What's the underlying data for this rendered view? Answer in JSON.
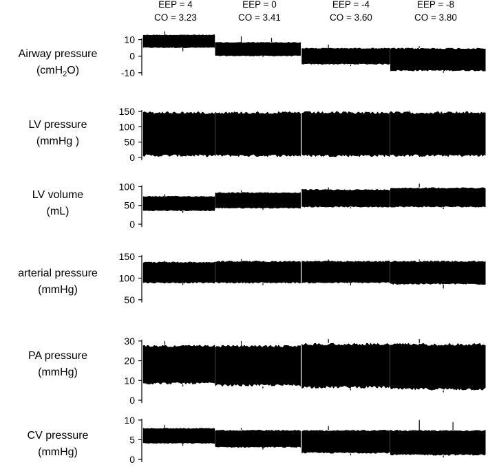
{
  "conditions": [
    {
      "eep": "EEP = 4",
      "co": "CO = 3.23"
    },
    {
      "eep": "EEP = 0",
      "co": "CO = 3.41"
    },
    {
      "eep": "EEP = -4",
      "co": "CO = 3.60"
    },
    {
      "eep": "EEP = -8",
      "co": "CO = 3.80"
    }
  ],
  "chart_data": [
    {
      "type": "area",
      "label_line1": "Airway pressure",
      "label_line2": "(cmH2O)",
      "yticks": [
        10,
        0,
        -10
      ],
      "ylim": [
        -13,
        14
      ],
      "segments": [
        {
          "condition": "EEP = 4",
          "min": 5,
          "max": 13,
          "x_range": [
            0,
            0.21
          ],
          "spikes_max": [
            15
          ],
          "spikes_min": [
            3
          ]
        },
        {
          "condition": "EEP = 0",
          "min": 0,
          "max": 8.5,
          "x_range": [
            0.21,
            0.462
          ],
          "spikes_max": [
            12,
            11
          ],
          "spikes_min": [
            -0.5
          ]
        },
        {
          "condition": "EEP = -4",
          "min": -5,
          "max": 5,
          "x_range": [
            0.462,
            0.72
          ],
          "spikes_max": [
            7
          ],
          "spikes_min": [
            -6
          ]
        },
        {
          "condition": "EEP = -8",
          "min": -9,
          "max": 5,
          "x_range": [
            0.72,
            1
          ],
          "spikes_max": [
            6
          ],
          "spikes_min": [
            -10
          ]
        }
      ]
    },
    {
      "type": "area",
      "label_line1": "LV pressure",
      "label_line2": "(mmHg )",
      "yticks": [
        150,
        100,
        50,
        0
      ],
      "ylim": [
        0,
        150
      ],
      "segments": [
        {
          "condition": "EEP = 4",
          "min": 2,
          "max": 150,
          "x_range": [
            0,
            0.21
          ]
        },
        {
          "condition": "EEP = 0",
          "min": 2,
          "max": 150,
          "x_range": [
            0.21,
            0.462
          ]
        },
        {
          "condition": "EEP = -4",
          "min": 2,
          "max": 150,
          "x_range": [
            0.462,
            0.72
          ]
        },
        {
          "condition": "EEP = -8",
          "min": 2,
          "max": 150,
          "x_range": [
            0.72,
            1
          ]
        }
      ]
    },
    {
      "type": "area",
      "label_line1": "LV volume",
      "label_line2": "(mL)",
      "yticks": [
        100,
        50,
        0
      ],
      "ylim": [
        0,
        110
      ],
      "segments": [
        {
          "condition": "EEP = 4",
          "min": 35,
          "max": 75,
          "x_range": [
            0,
            0.21
          ],
          "spikes_max": [
            80
          ],
          "spikes_min": [
            30
          ]
        },
        {
          "condition": "EEP = 0",
          "min": 42,
          "max": 85,
          "x_range": [
            0.21,
            0.462
          ],
          "spikes_max": [
            90
          ],
          "spikes_min": [
            38
          ]
        },
        {
          "condition": "EEP = -4",
          "min": 45,
          "max": 93,
          "x_range": [
            0.462,
            0.72
          ],
          "spikes_max": [
            98
          ],
          "spikes_min": [
            42
          ]
        },
        {
          "condition": "EEP = -8",
          "min": 45,
          "max": 98,
          "x_range": [
            0.72,
            1
          ],
          "spikes_max": [
            108
          ],
          "spikes_min": [
            40
          ]
        }
      ]
    },
    {
      "type": "area",
      "label_line1": "arterial pressure",
      "label_line2": "(mmHg)",
      "yticks": [
        150,
        100,
        50
      ],
      "ylim": [
        45,
        150
      ],
      "segments": [
        {
          "condition": "EEP = 4",
          "min": 88,
          "max": 138,
          "x_range": [
            0,
            0.21
          ],
          "spikes_max": [
            140
          ],
          "spikes_min": [
            84
          ]
        },
        {
          "condition": "EEP = 0",
          "min": 88,
          "max": 140,
          "x_range": [
            0.21,
            0.462
          ],
          "spikes_max": [
            144
          ],
          "spikes_min": [
            84
          ]
        },
        {
          "condition": "EEP = -4",
          "min": 88,
          "max": 140,
          "x_range": [
            0.462,
            0.72
          ],
          "spikes_max": [
            143
          ],
          "spikes_min": [
            83
          ]
        },
        {
          "condition": "EEP = -8",
          "min": 85,
          "max": 140,
          "x_range": [
            0.72,
            1
          ],
          "spikes_max": [
            143
          ],
          "spikes_min": [
            76
          ]
        }
      ]
    },
    {
      "type": "area",
      "label_line1": "PA pressure",
      "label_line2": "(mmHg)",
      "yticks": [
        30,
        20,
        10,
        0
      ],
      "ylim": [
        0,
        31
      ],
      "segments": [
        {
          "condition": "EEP = 4",
          "min": 8,
          "max": 28,
          "x_range": [
            0,
            0.21
          ],
          "spikes_max": [
            30
          ],
          "spikes_min": [
            7
          ]
        },
        {
          "condition": "EEP = 0",
          "min": 7,
          "max": 28,
          "x_range": [
            0.21,
            0.462
          ],
          "spikes_max": [
            30
          ],
          "spikes_min": [
            6
          ]
        },
        {
          "condition": "EEP = -4",
          "min": 6,
          "max": 29,
          "x_range": [
            0.462,
            0.72
          ],
          "spikes_max": [
            31
          ],
          "spikes_min": [
            5
          ]
        },
        {
          "condition": "EEP = -8",
          "min": 5,
          "max": 29,
          "x_range": [
            0.72,
            1
          ],
          "spikes_max": [
            31
          ],
          "spikes_min": [
            4
          ]
        }
      ]
    },
    {
      "type": "area",
      "label_line1": "CV pressure",
      "label_line2": "(mmHg)",
      "yticks": [
        10,
        5,
        0
      ],
      "ylim": [
        0,
        10.5
      ],
      "segments": [
        {
          "condition": "EEP = 4",
          "min": 4,
          "max": 8,
          "x_range": [
            0,
            0.21
          ],
          "spikes_max": [
            8.8
          ],
          "spikes_min": [
            3.5
          ]
        },
        {
          "condition": "EEP = 0",
          "min": 3,
          "max": 7.5,
          "x_range": [
            0.21,
            0.462
          ],
          "spikes_max": [
            8
          ],
          "spikes_min": [
            2.5
          ]
        },
        {
          "condition": "EEP = -4",
          "min": 1.5,
          "max": 7.5,
          "x_range": [
            0.462,
            0.72
          ],
          "spikes_max": [
            8.5
          ],
          "spikes_min": [
            1
          ]
        },
        {
          "condition": "EEP = -8",
          "min": 1,
          "max": 7.5,
          "x_range": [
            0.72,
            1
          ],
          "spikes_max": [
            10,
            9.5
          ],
          "spikes_min": [
            0.5
          ]
        }
      ]
    }
  ]
}
